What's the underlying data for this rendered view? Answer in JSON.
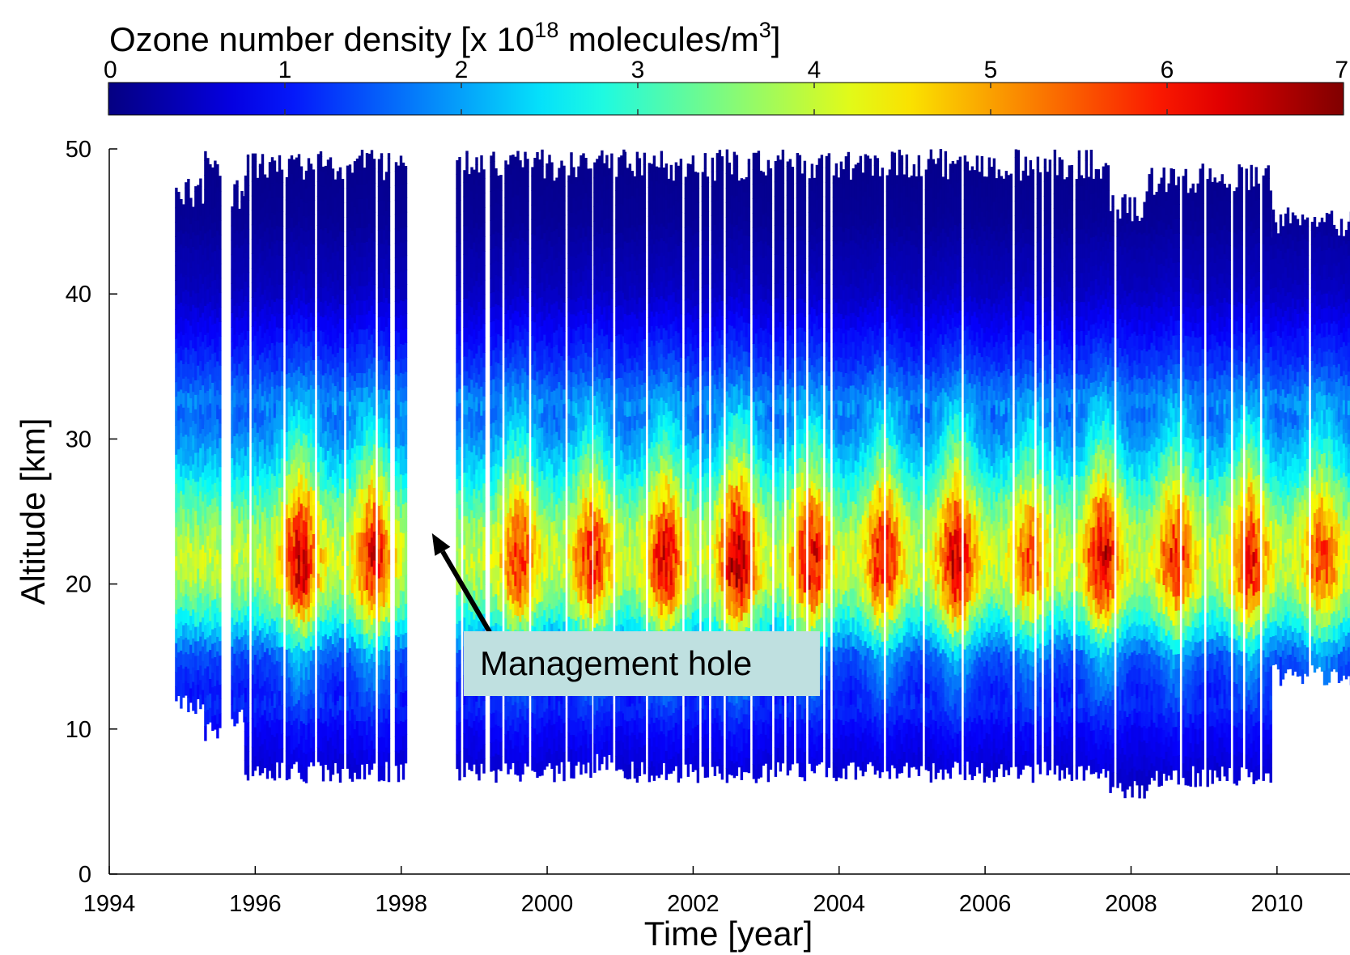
{
  "chart_data": {
    "type": "heatmap",
    "title": "",
    "colorbar": {
      "label_prefix": "Ozone number density [x 10",
      "label_exponent": "18",
      "label_middle": " molecules/m",
      "label_unit_exponent": "3",
      "label_suffix": "]",
      "ticks": [
        "0",
        "1",
        "2",
        "3",
        "4",
        "5",
        "6",
        "7"
      ],
      "range": [
        0,
        7
      ],
      "colormap": "jet",
      "placement": "top"
    },
    "xlabel": "Time [year]",
    "ylabel": "Altitude [km]",
    "xlim": [
      1994,
      2011
    ],
    "ylim": [
      0,
      50
    ],
    "x_ticks": [
      "1994",
      "1996",
      "1998",
      "2000",
      "2002",
      "2004",
      "2006",
      "2008",
      "2010"
    ],
    "y_ticks": [
      "0",
      "10",
      "20",
      "30",
      "40",
      "50"
    ],
    "grid": false,
    "z_units": "x 10^18 molecules/m^3",
    "data_gaps": [
      [
        1994.0,
        1994.9
      ],
      [
        1998.1,
        1998.75
      ]
    ],
    "coverage": [
      {
        "start": 1994.9,
        "end": 1995.3,
        "alt_min": 11,
        "alt_max": 48
      },
      {
        "start": 1995.3,
        "end": 1995.5,
        "alt_min": 9,
        "alt_max": 50
      },
      {
        "start": 1995.6,
        "end": 1995.85,
        "alt_min": 10,
        "alt_max": 48
      },
      {
        "start": 1995.85,
        "end": 1998.05,
        "alt_min": 6.3,
        "alt_max": 50
      },
      {
        "start": 1998.75,
        "end": 2000.6,
        "alt_min": 6.3,
        "alt_max": 50
      },
      {
        "start": 2000.6,
        "end": 2001.05,
        "alt_min": 7,
        "alt_max": 50
      },
      {
        "start": 2001.05,
        "end": 2007.7,
        "alt_min": 6.3,
        "alt_max": 50
      },
      {
        "start": 2007.7,
        "end": 2008.2,
        "alt_min": 5,
        "alt_max": 47
      },
      {
        "start": 2008.2,
        "end": 2009.9,
        "alt_min": 6,
        "alt_max": 49
      },
      {
        "start": 2009.9,
        "end": 2011.0,
        "alt_min": 13,
        "alt_max": 46
      }
    ],
    "profile": {
      "altitudes_km": [
        5,
        10,
        15,
        18,
        20,
        22,
        24,
        26,
        28,
        30,
        35,
        40,
        45,
        50
      ],
      "typical_density": [
        0.4,
        0.9,
        1.9,
        4.0,
        5.2,
        5.5,
        5.0,
        4.2,
        3.3,
        2.6,
        1.3,
        0.5,
        0.15,
        0.05
      ]
    },
    "seasonal_peaks": [
      {
        "year": 1996.6,
        "peak_density": 6.5
      },
      {
        "year": 1997.6,
        "peak_density": 6.2
      },
      {
        "year": 1999.6,
        "peak_density": 5.9
      },
      {
        "year": 2000.6,
        "peak_density": 6.0
      },
      {
        "year": 2001.6,
        "peak_density": 6.3
      },
      {
        "year": 2002.6,
        "peak_density": 6.8
      },
      {
        "year": 2003.6,
        "peak_density": 6.3
      },
      {
        "year": 2004.6,
        "peak_density": 6.2
      },
      {
        "year": 2005.6,
        "peak_density": 6.6
      },
      {
        "year": 2006.6,
        "peak_density": 5.6
      },
      {
        "year": 2007.6,
        "peak_density": 6.5
      },
      {
        "year": 2008.6,
        "peak_density": 6.0
      },
      {
        "year": 2009.6,
        "peak_density": 6.2
      },
      {
        "year": 2010.6,
        "peak_density": 5.7
      }
    ],
    "annotations": [
      {
        "text": "Management hole",
        "points_to": {
          "x": 1998.4,
          "y": 23.5
        }
      }
    ]
  }
}
